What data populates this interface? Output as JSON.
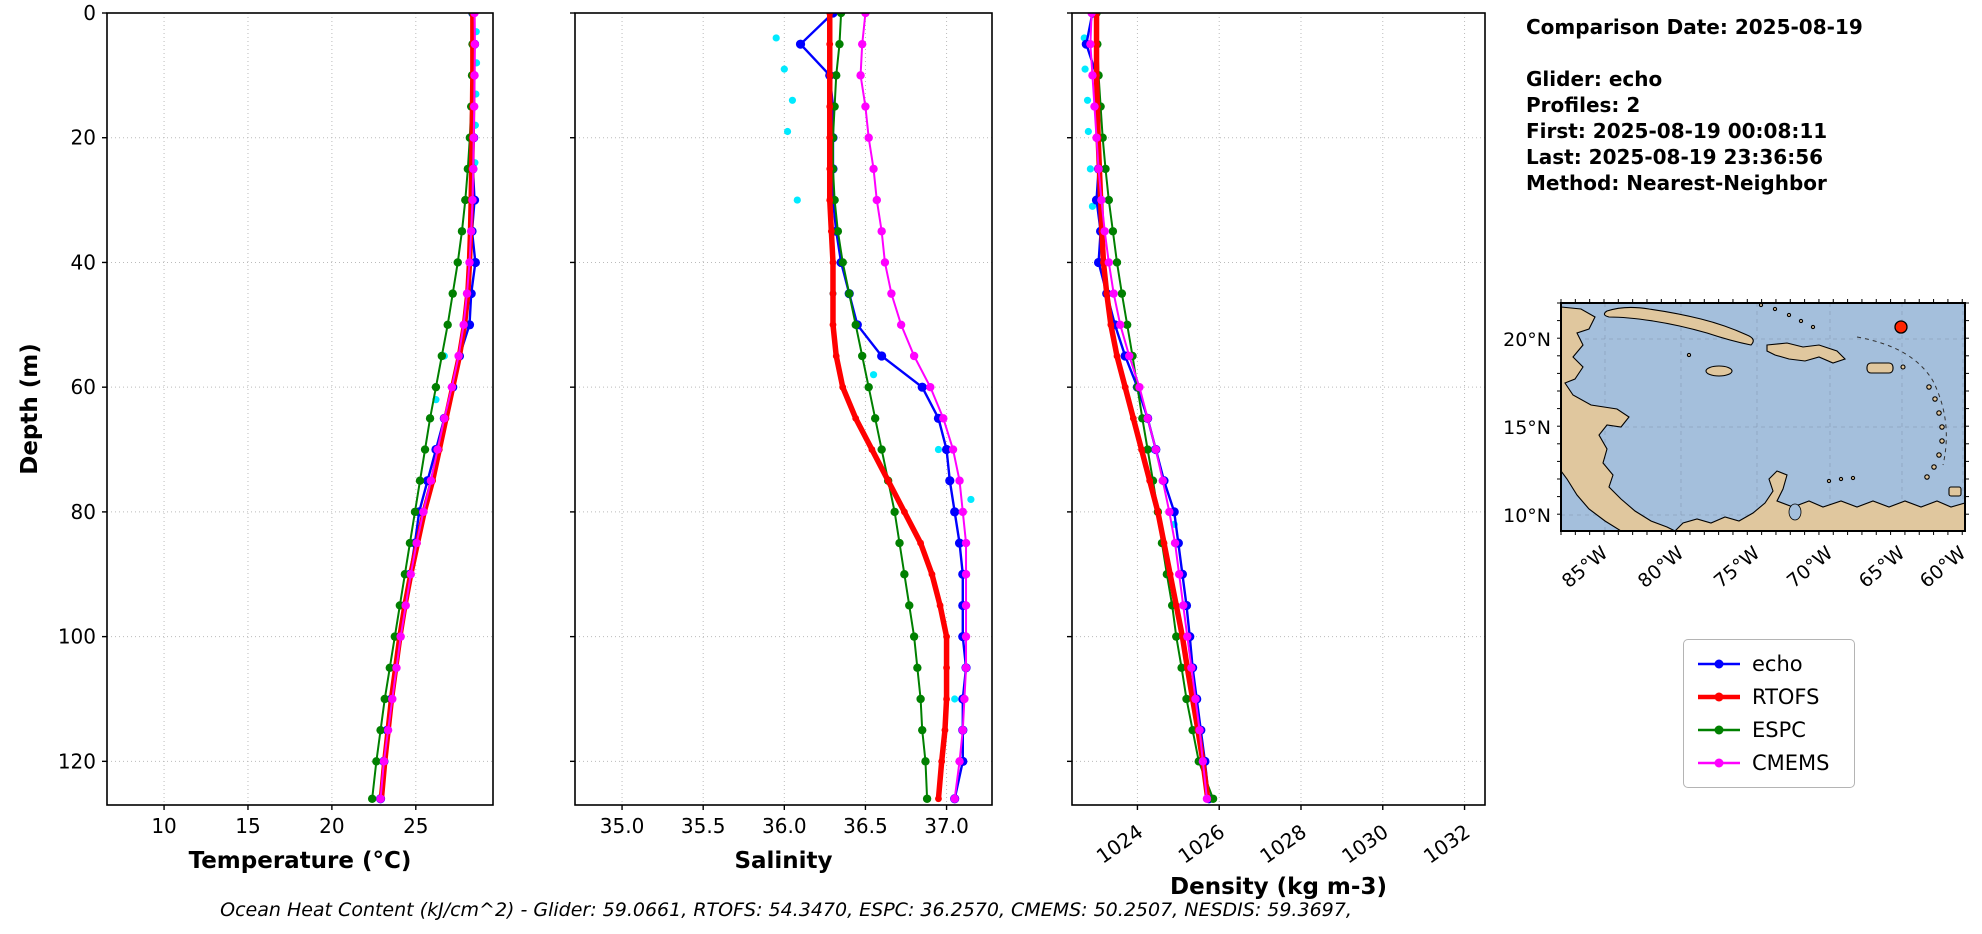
{
  "info_panel": {
    "comparison_date": "Comparison Date: 2025-08-19",
    "glider": "Glider: echo",
    "profiles": "Profiles: 2",
    "first": "First: 2025-08-19 00:08:11",
    "last": "Last: 2025-08-19 23:36:56",
    "method": "Method: Nearest-Neighbor"
  },
  "footer": {
    "ohc_text": "Ocean Heat Content (kJ/cm^2) - Glider: 59.0661,  RTOFS: 54.3470,  ESPC: 36.2570,  CMEMS: 50.2507,  NESDIS: 59.3697,"
  },
  "y_axis": {
    "label": "Depth (m)",
    "ticks": [
      0,
      20,
      40,
      60,
      80,
      100,
      120
    ],
    "lim": [
      0,
      127
    ]
  },
  "legend": {
    "items": [
      {
        "label": "echo",
        "color": "#0000ff"
      },
      {
        "label": "RTOFS",
        "color": "#ff0000"
      },
      {
        "label": "ESPC",
        "color": "#008000"
      },
      {
        "label": "CMEMS",
        "color": "#ff00ff"
      }
    ]
  },
  "map": {
    "lat_labels": [
      "20°N",
      "15°N",
      "10°N"
    ],
    "lon_labels": [
      "85°W",
      "80°W",
      "75°W",
      "70°W",
      "65°W",
      "60°W"
    ],
    "ocean_color": "#a4bfdc",
    "land_color": "#e0c79e",
    "marker_color": "#ff2400"
  },
  "chart_data": [
    {
      "type": "line",
      "id": "temperature",
      "xlabel": "Temperature (°C)",
      "ylabel": "Depth (m)",
      "xlim": [
        6.6,
        29.6
      ],
      "ylim": [
        0,
        127
      ],
      "xticks": [
        10,
        15,
        20,
        25
      ],
      "xtick_labels": [
        "10",
        "15",
        "20",
        "25"
      ],
      "xtick_rotation": 0,
      "grid": true,
      "depths": [
        0,
        5,
        10,
        15,
        20,
        25,
        30,
        35,
        40,
        45,
        50,
        55,
        60,
        65,
        70,
        75,
        80,
        85,
        90,
        95,
        100,
        105,
        110,
        115,
        120,
        126
      ],
      "series": [
        {
          "name": "echo",
          "color": "#0000ff",
          "values": [
            28.4,
            28.5,
            28.45,
            28.42,
            28.45,
            28.4,
            28.5,
            28.35,
            28.55,
            28.3,
            28.2,
            27.6,
            27.2,
            26.7,
            26.2,
            25.7,
            25.2,
            24.95,
            24.65,
            24.35,
            24.05,
            23.8,
            23.55,
            23.3,
            23.1,
            22.9
          ]
        },
        {
          "name": "RTOFS",
          "color": "#ff0000",
          "values": [
            28.4,
            28.4,
            28.4,
            28.38,
            28.36,
            28.33,
            28.3,
            28.26,
            28.2,
            28.1,
            27.9,
            27.6,
            27.2,
            26.8,
            26.4,
            26.0,
            25.5,
            25.1,
            24.7,
            24.35,
            24.05,
            23.8,
            23.55,
            23.35,
            23.15,
            22.95
          ]
        },
        {
          "name": "ESPC",
          "color": "#008000",
          "values": [
            28.4,
            28.38,
            28.35,
            28.3,
            28.22,
            28.1,
            27.95,
            27.75,
            27.5,
            27.2,
            26.9,
            26.55,
            26.2,
            25.85,
            25.55,
            25.25,
            24.95,
            24.65,
            24.35,
            24.05,
            23.75,
            23.45,
            23.15,
            22.9,
            22.65,
            22.4
          ]
        },
        {
          "name": "CMEMS",
          "color": "#ff00ff",
          "values": [
            28.5,
            28.52,
            28.5,
            28.48,
            28.45,
            28.42,
            28.38,
            28.3,
            28.2,
            28.05,
            27.85,
            27.55,
            27.15,
            26.7,
            26.3,
            25.9,
            25.45,
            25.05,
            24.7,
            24.4,
            24.1,
            23.85,
            23.6,
            23.35,
            23.1,
            22.9
          ]
        }
      ],
      "scatter": [
        {
          "name": "NESDIS",
          "color": "#00eaff",
          "points": [
            [
              28.6,
              3
            ],
            [
              28.62,
              8
            ],
            [
              28.58,
              13
            ],
            [
              28.55,
              18
            ],
            [
              28.52,
              24
            ],
            [
              28.48,
              30
            ],
            [
              26.7,
              55
            ],
            [
              26.2,
              62
            ]
          ]
        }
      ]
    },
    {
      "type": "line",
      "id": "salinity",
      "xlabel": "Salinity",
      "ylabel": "Depth (m)",
      "xlim": [
        34.71,
        37.28
      ],
      "ylim": [
        0,
        127
      ],
      "xticks": [
        35.0,
        35.5,
        36.0,
        36.5,
        37.0
      ],
      "xtick_labels": [
        "35.0",
        "35.5",
        "36.0",
        "36.5",
        "37.0"
      ],
      "xtick_rotation": 0,
      "grid": true,
      "depths": [
        0,
        5,
        10,
        15,
        20,
        25,
        30,
        35,
        40,
        45,
        50,
        55,
        60,
        65,
        70,
        75,
        80,
        85,
        90,
        95,
        100,
        105,
        110,
        115,
        120,
        126
      ],
      "series": [
        {
          "name": "echo",
          "color": "#0000ff",
          "values": [
            36.3,
            36.1,
            36.28,
            36.3,
            36.3,
            36.3,
            36.3,
            36.32,
            36.35,
            36.4,
            36.45,
            36.6,
            36.85,
            36.95,
            37.0,
            37.02,
            37.05,
            37.08,
            37.1,
            37.1,
            37.1,
            37.12,
            37.1,
            37.1,
            37.1,
            37.05
          ]
        },
        {
          "name": "RTOFS",
          "color": "#ff0000",
          "values": [
            36.28,
            36.28,
            36.28,
            36.28,
            36.28,
            36.28,
            36.28,
            36.29,
            36.3,
            36.3,
            36.3,
            36.32,
            36.36,
            36.44,
            36.54,
            36.64,
            36.74,
            36.84,
            36.91,
            36.96,
            37.0,
            37.0,
            37.0,
            36.99,
            36.97,
            36.95
          ]
        },
        {
          "name": "ESPC",
          "color": "#008000",
          "values": [
            36.35,
            36.34,
            36.32,
            36.31,
            36.3,
            36.3,
            36.31,
            36.33,
            36.36,
            36.4,
            36.44,
            36.48,
            36.52,
            36.56,
            36.6,
            36.64,
            36.68,
            36.71,
            36.74,
            36.77,
            36.8,
            36.82,
            36.84,
            36.85,
            36.87,
            36.88
          ]
        },
        {
          "name": "CMEMS",
          "color": "#ff00ff",
          "values": [
            36.5,
            36.48,
            36.47,
            36.5,
            36.52,
            36.55,
            36.57,
            36.6,
            36.62,
            36.66,
            36.72,
            36.8,
            36.9,
            36.98,
            37.04,
            37.08,
            37.1,
            37.12,
            37.12,
            37.12,
            37.12,
            37.12,
            37.11,
            37.1,
            37.08,
            37.05
          ]
        }
      ],
      "scatter": [
        {
          "name": "NESDIS",
          "color": "#00eaff",
          "points": [
            [
              35.95,
              4
            ],
            [
              36.0,
              9
            ],
            [
              36.05,
              14
            ],
            [
              36.02,
              19
            ],
            [
              36.08,
              30
            ],
            [
              36.3,
              45
            ],
            [
              36.55,
              58
            ],
            [
              36.95,
              70
            ],
            [
              37.15,
              78
            ],
            [
              37.05,
              110
            ]
          ]
        }
      ]
    },
    {
      "type": "line",
      "id": "density",
      "xlabel": "Density (kg m-3)",
      "ylabel": "Depth (m)",
      "xlim": [
        1022.4,
        1032.5
      ],
      "ylim": [
        0,
        127
      ],
      "xticks": [
        1024,
        1026,
        1028,
        1030,
        1032
      ],
      "xtick_labels": [
        "1024",
        "1026",
        "1028",
        "1030",
        "1032"
      ],
      "xtick_rotation": 35,
      "grid": true,
      "depths": [
        0,
        5,
        10,
        15,
        20,
        25,
        30,
        35,
        40,
        45,
        50,
        55,
        60,
        65,
        70,
        75,
        80,
        85,
        90,
        95,
        100,
        105,
        110,
        115,
        120,
        126
      ],
      "series": [
        {
          "name": "echo",
          "color": "#0000ff",
          "values": [
            1022.9,
            1022.75,
            1023.0,
            1023.0,
            1023.02,
            1023.05,
            1023.0,
            1023.1,
            1023.05,
            1023.25,
            1023.45,
            1023.7,
            1024.0,
            1024.25,
            1024.45,
            1024.65,
            1024.9,
            1025.0,
            1025.1,
            1025.2,
            1025.28,
            1025.35,
            1025.45,
            1025.55,
            1025.65,
            1025.75
          ]
        },
        {
          "name": "RTOFS",
          "color": "#ff0000",
          "values": [
            1023.0,
            1023.0,
            1023.0,
            1023.02,
            1023.04,
            1023.07,
            1023.1,
            1023.13,
            1023.17,
            1023.25,
            1023.35,
            1023.5,
            1023.7,
            1023.9,
            1024.1,
            1024.3,
            1024.5,
            1024.65,
            1024.8,
            1024.95,
            1025.1,
            1025.22,
            1025.35,
            1025.48,
            1025.6,
            1025.72
          ]
        },
        {
          "name": "ESPC",
          "color": "#008000",
          "values": [
            1023.0,
            1023.02,
            1023.05,
            1023.1,
            1023.15,
            1023.22,
            1023.3,
            1023.4,
            1023.5,
            1023.62,
            1023.75,
            1023.88,
            1024.0,
            1024.12,
            1024.25,
            1024.38,
            1024.5,
            1024.6,
            1024.72,
            1024.85,
            1024.95,
            1025.08,
            1025.2,
            1025.35,
            1025.5,
            1025.85
          ]
        },
        {
          "name": "CMEMS",
          "color": "#ff00ff",
          "values": [
            1022.88,
            1022.85,
            1022.9,
            1022.95,
            1023.0,
            1023.05,
            1023.12,
            1023.2,
            1023.3,
            1023.42,
            1023.58,
            1023.8,
            1024.05,
            1024.25,
            1024.45,
            1024.62,
            1024.78,
            1024.92,
            1025.02,
            1025.12,
            1025.22,
            1025.32,
            1025.42,
            1025.52,
            1025.6,
            1025.7
          ]
        }
      ],
      "scatter": [
        {
          "name": "NESDIS",
          "color": "#00eaff",
          "points": [
            [
              1022.7,
              4
            ],
            [
              1022.72,
              9
            ],
            [
              1022.78,
              14
            ],
            [
              1022.8,
              19
            ],
            [
              1022.85,
              25
            ],
            [
              1022.9,
              31
            ],
            [
              1024.4,
              70
            ],
            [
              1024.9,
              82
            ]
          ]
        }
      ]
    }
  ]
}
